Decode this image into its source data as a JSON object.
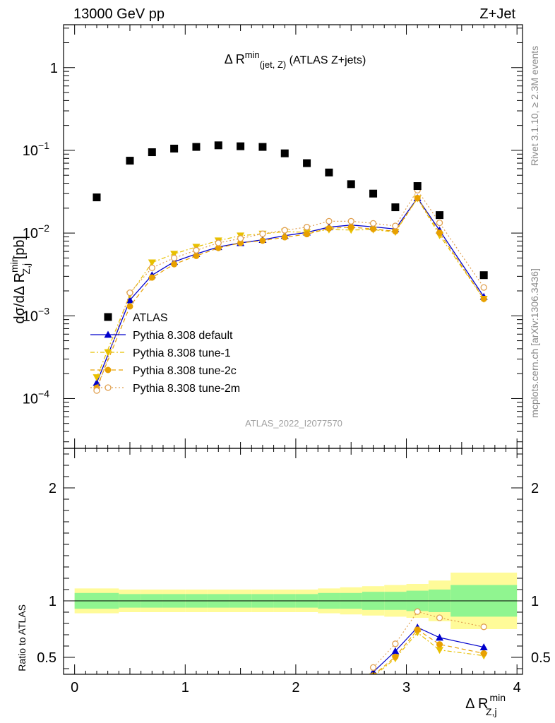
{
  "header": {
    "energy": "13000 GeV pp",
    "process": "Z+Jet",
    "plot_title_main": "Δ R",
    "plot_title_sup": "min",
    "plot_title_sub": "(jet, Z)",
    "plot_title_tail": " (ATLAS Z+jets)",
    "watermark": "ATLAS_2022_I2077570",
    "side_rivet": "Rivet 3.1.10, ≥ 2.3M events",
    "side_mcplots": "mcplots.cern.ch [arXiv:1306.3436]"
  },
  "axes": {
    "ylabel_main": "dσ/dΔ R",
    "ylabel_main_sup": "min",
    "ylabel_main_sub": "Z,j",
    "ylabel_main_unit": " [pb]",
    "ylabel_ratio": "Ratio to ATLAS",
    "xlabel": "Δ R",
    "xlabel_sup": "min",
    "xlabel_sub": "Z,j"
  },
  "chart_data": [
    {
      "type": "scatter",
      "panel": "main",
      "yscale": "log",
      "xlim": [
        -0.1,
        4.05
      ],
      "ylim": [
        2.5e-05,
        3.3
      ],
      "x_ticks": [
        0,
        1,
        2,
        3,
        4
      ],
      "y_ticks": [
        {
          "value": 0.0001,
          "base": "10",
          "exp": "−4"
        },
        {
          "value": 0.001,
          "base": "10",
          "exp": "−3"
        },
        {
          "value": 0.01,
          "base": "10",
          "exp": "−2"
        },
        {
          "value": 0.1,
          "base": "10",
          "exp": "−1"
        },
        {
          "value": 1,
          "base": "1",
          "exp": ""
        }
      ],
      "x": [
        0.2,
        0.5,
        0.7,
        0.9,
        1.1,
        1.3,
        1.5,
        1.7,
        1.9,
        2.1,
        2.3,
        2.5,
        2.7,
        2.9,
        3.1,
        3.3,
        3.7
      ],
      "series": [
        {
          "name": "ATLAS",
          "marker": "square",
          "color": "#000000",
          "values": [
            0.027,
            0.075,
            0.095,
            0.105,
            0.11,
            0.115,
            0.112,
            0.11,
            0.092,
            0.07,
            0.054,
            0.039,
            0.03,
            0.0205,
            0.037,
            0.0165,
            0.0031
          ]
        },
        {
          "name": "Pythia 8.308 default",
          "marker": "triangle-up",
          "color": "#0000cc",
          "line": "solid",
          "values": [
            0.000155,
            0.00155,
            0.0031,
            0.0045,
            0.0056,
            0.0068,
            0.0076,
            0.0083,
            0.0093,
            0.0102,
            0.0118,
            0.0125,
            0.0119,
            0.0112,
            0.0265,
            0.0108,
            0.0017
          ]
        },
        {
          "name": "Pythia 8.308 tune-1",
          "marker": "triangle-down",
          "color": "#e8c000",
          "line": "dashdot",
          "values": [
            0.00018,
            0.0018,
            0.0044,
            0.0056,
            0.0068,
            0.0081,
            0.0093,
            0.0098,
            0.0104,
            0.0102,
            0.011,
            0.0109,
            0.011,
            0.0103,
            0.0262,
            0.0094,
            0.0016
          ]
        },
        {
          "name": "Pythia 8.308 tune-2c",
          "marker": "circle",
          "color": "#e8a000",
          "line": "dashed",
          "values": [
            0.000135,
            0.0013,
            0.0029,
            0.0042,
            0.0053,
            0.0066,
            0.0076,
            0.0081,
            0.0089,
            0.0097,
            0.0114,
            0.0118,
            0.0112,
            0.0105,
            0.0265,
            0.0101,
            0.0016
          ]
        },
        {
          "name": "Pythia 8.308 tune-2m",
          "marker": "circle-open",
          "color": "#e0a050",
          "line": "dotted",
          "values": [
            0.000125,
            0.0019,
            0.0038,
            0.005,
            0.0062,
            0.0076,
            0.0086,
            0.0098,
            0.0108,
            0.0118,
            0.0139,
            0.0139,
            0.0131,
            0.0122,
            0.033,
            0.0133,
            0.0022
          ]
        }
      ]
    },
    {
      "type": "line",
      "panel": "ratio",
      "xlim": [
        -0.1,
        4.05
      ],
      "ylim": [
        0.35,
        2.35
      ],
      "y_ticks": [
        {
          "value": 0.5,
          "label": "0.5"
        },
        {
          "value": 1,
          "label": "1"
        },
        {
          "value": 2,
          "label": "2"
        }
      ],
      "band_edges": [
        0.0,
        0.4,
        0.6,
        0.8,
        1.0,
        1.2,
        1.4,
        1.6,
        1.8,
        2.0,
        2.2,
        2.4,
        2.6,
        2.8,
        3.0,
        3.2,
        3.4,
        4.0
      ],
      "band_inner": [
        0.07,
        0.06,
        0.06,
        0.06,
        0.06,
        0.06,
        0.06,
        0.06,
        0.06,
        0.06,
        0.07,
        0.07,
        0.08,
        0.08,
        0.09,
        0.1,
        0.14
      ],
      "band_outer": [
        0.11,
        0.1,
        0.1,
        0.1,
        0.1,
        0.1,
        0.1,
        0.1,
        0.1,
        0.1,
        0.11,
        0.12,
        0.13,
        0.14,
        0.15,
        0.18,
        0.25
      ],
      "x": [
        2.7,
        2.9,
        3.1,
        3.3,
        3.7
      ],
      "series": [
        {
          "name": "Pythia 8.308 default",
          "values": [
            0.37,
            0.555,
            0.765,
            0.675,
            0.59
          ]
        },
        {
          "name": "Pythia 8.308 tune-1",
          "values": [
            0.33,
            0.49,
            0.72,
            0.565,
            0.515
          ]
        },
        {
          "name": "Pythia 8.308 tune-2c",
          "values": [
            0.34,
            0.505,
            0.745,
            0.615,
            0.535
          ]
        },
        {
          "name": "Pythia 8.308 tune-2m",
          "values": [
            0.41,
            0.62,
            0.905,
            0.85,
            0.77
          ]
        }
      ]
    }
  ],
  "colors": {
    "band_inner": "#90f590",
    "band_outer": "#fffb99"
  }
}
